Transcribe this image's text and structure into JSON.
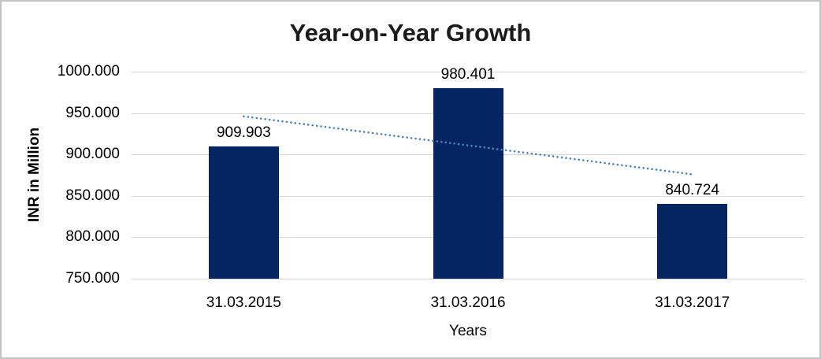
{
  "chart_data": {
    "type": "bar",
    "title": "Year-on-Year Growth",
    "categories": [
      "31.03.2015",
      "31.03.2016",
      "31.03.2017"
    ],
    "values": [
      909.903,
      980.401,
      840.724
    ],
    "data_labels": [
      "909.903",
      "980.401",
      "840.724"
    ],
    "xlabel": "Years",
    "ylabel": "INR in Million",
    "ylim": [
      750,
      1000
    ],
    "ytick_step": 50,
    "ytick_labels": [
      "750.000",
      "800.000",
      "850.000",
      "900.000",
      "950.000",
      "1000.000"
    ],
    "grid": true,
    "legend": "none",
    "bar_color": "#052462",
    "gridline_color": "#d6d6d6",
    "trendline": {
      "type": "linear",
      "style": "round-dot",
      "color": "#4e81bd",
      "start_value": 946,
      "end_value": 876
    }
  }
}
